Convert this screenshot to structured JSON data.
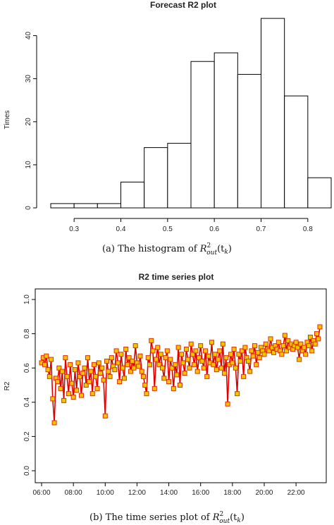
{
  "captions": {
    "a_prefix": "(a)  The histogram of ",
    "a_math": "R",
    "a_sup": "2",
    "a_sub": "out",
    "a_arg": "(t",
    "a_argsub": "k",
    "a_close": ")",
    "b_prefix": "(b)  The time series plot of ",
    "b_math": "R",
    "b_sup": "2",
    "b_sub": "out",
    "b_arg": "(t",
    "b_argsub": "k",
    "b_close": ")"
  },
  "chart_data": [
    {
      "type": "bar",
      "title": "Forecast R2 plot",
      "xlabel": "",
      "ylabel": "Times",
      "bin_edges": [
        0.25,
        0.3,
        0.35,
        0.4,
        0.45,
        0.5,
        0.55,
        0.6,
        0.65,
        0.7,
        0.75,
        0.8,
        0.85
      ],
      "values": [
        1,
        1,
        1,
        6,
        14,
        15,
        34,
        36,
        31,
        44,
        26,
        7
      ],
      "x_ticks": [
        "0.3",
        "0.4",
        "0.5",
        "0.6",
        "0.7",
        "0.8"
      ],
      "x_tick_values": [
        0.3,
        0.4,
        0.5,
        0.6,
        0.7,
        0.8
      ],
      "y_ticks": [
        "0",
        "10",
        "20",
        "30",
        "40"
      ],
      "y_tick_values": [
        0,
        10,
        20,
        30,
        40
      ],
      "xlim": [
        0.25,
        0.85
      ],
      "ylim": [
        0,
        45
      ],
      "bar_fill": "#ffffff",
      "bar_stroke": "#000000"
    },
    {
      "type": "line",
      "title": "R2 time series plot",
      "xlabel": "",
      "ylabel": "R2",
      "x_unit": "hour of day",
      "x_ticks": [
        "06:00",
        "08:00",
        "10:00",
        "12:00",
        "14:00",
        "16:00",
        "18:00",
        "20:00",
        "22:00"
      ],
      "x_tick_values": [
        6,
        8,
        10,
        12,
        14,
        16,
        18,
        20,
        22
      ],
      "y_ticks": [
        "0.0",
        "0.2",
        "0.4",
        "0.6",
        "0.8",
        "1.0"
      ],
      "y_tick_values": [
        0.0,
        0.2,
        0.4,
        0.6,
        0.8,
        1.0
      ],
      "xlim": [
        5.6,
        23.9
      ],
      "ylim": [
        0.0,
        1.0
      ],
      "line_color": "#e00000",
      "marker_fill": "#f5c400",
      "marker_stroke": "#e03000",
      "series": [
        {
          "x": [
            6.0,
            6.1,
            6.2,
            6.3,
            6.4,
            6.5,
            6.6,
            6.7,
            6.8,
            6.9,
            7.0,
            7.1,
            7.2,
            7.3,
            7.4,
            7.5,
            7.6,
            7.7,
            7.8,
            7.9,
            8.0,
            8.1,
            8.2,
            8.3,
            8.4,
            8.5,
            8.6,
            8.7,
            8.8,
            8.9,
            9.0,
            9.1,
            9.2,
            9.3,
            9.4,
            9.5,
            9.6,
            9.7,
            9.8,
            9.9,
            10.0,
            10.1,
            10.2,
            10.3,
            10.4,
            10.5,
            10.6,
            10.7,
            10.8,
            10.9,
            11.0,
            11.1,
            11.2,
            11.3,
            11.4,
            11.5,
            11.6,
            11.7,
            11.8,
            11.9,
            12.0,
            12.1,
            12.2,
            12.3,
            12.4,
            12.5,
            12.6,
            12.7,
            12.8,
            12.9,
            13.0,
            13.1,
            13.2,
            13.3,
            13.4,
            13.5,
            13.6,
            13.7,
            13.8,
            13.9,
            14.0,
            14.1,
            14.2,
            14.3,
            14.4,
            14.5,
            14.6,
            14.7,
            14.8,
            14.9,
            15.0,
            15.1,
            15.2,
            15.3,
            15.4,
            15.5,
            15.6,
            15.7,
            15.8,
            15.9,
            16.0,
            16.1,
            16.2,
            16.3,
            16.4,
            16.5,
            16.6,
            16.7,
            16.8,
            16.9,
            17.0,
            17.1,
            17.2,
            17.3,
            17.4,
            17.5,
            17.6,
            17.7,
            17.8,
            17.9,
            18.0,
            18.1,
            18.2,
            18.3,
            18.4,
            18.5,
            18.6,
            18.7,
            18.8,
            18.9,
            19.0,
            19.1,
            19.2,
            19.3,
            19.4,
            19.5,
            19.6,
            19.7,
            19.8,
            19.9,
            20.0,
            20.1,
            20.2,
            20.3,
            20.4,
            20.5,
            20.6,
            20.7,
            20.8,
            20.9,
            21.0,
            21.1,
            21.2,
            21.3,
            21.4,
            21.5,
            21.6,
            21.7,
            21.8,
            21.9,
            22.0,
            22.1,
            22.2,
            22.3,
            22.4,
            22.5,
            22.6,
            22.7,
            22.8,
            22.9,
            23.0,
            23.1,
            23.2,
            23.3,
            23.4,
            23.5
          ],
          "y": [
            0.63,
            0.66,
            0.62,
            0.67,
            0.59,
            0.55,
            0.65,
            0.42,
            0.28,
            0.54,
            0.52,
            0.6,
            0.48,
            0.58,
            0.41,
            0.66,
            0.55,
            0.45,
            0.62,
            0.51,
            0.43,
            0.59,
            0.47,
            0.63,
            0.55,
            0.44,
            0.57,
            0.6,
            0.5,
            0.66,
            0.52,
            0.58,
            0.45,
            0.62,
            0.55,
            0.48,
            0.63,
            0.57,
            0.6,
            0.53,
            0.32,
            0.64,
            0.58,
            0.55,
            0.66,
            0.61,
            0.59,
            0.7,
            0.63,
            0.52,
            0.68,
            0.6,
            0.54,
            0.71,
            0.62,
            0.66,
            0.58,
            0.64,
            0.6,
            0.73,
            0.63,
            0.61,
            0.67,
            0.58,
            0.55,
            0.5,
            0.45,
            0.66,
            0.62,
            0.76,
            0.7,
            0.48,
            0.65,
            0.72,
            0.62,
            0.68,
            0.6,
            0.54,
            0.66,
            0.7,
            0.52,
            0.65,
            0.6,
            0.48,
            0.62,
            0.56,
            0.72,
            0.5,
            0.68,
            0.63,
            0.57,
            0.71,
            0.65,
            0.6,
            0.74,
            0.68,
            0.62,
            0.7,
            0.58,
            0.66,
            0.73,
            0.64,
            0.6,
            0.7,
            0.55,
            0.67,
            0.63,
            0.75,
            0.62,
            0.68,
            0.59,
            0.65,
            0.7,
            0.6,
            0.74,
            0.57,
            0.66,
            0.39,
            0.62,
            0.68,
            0.63,
            0.71,
            0.6,
            0.45,
            0.68,
            0.64,
            0.7,
            0.55,
            0.72,
            0.66,
            0.64,
            0.58,
            0.7,
            0.67,
            0.73,
            0.62,
            0.69,
            0.66,
            0.72,
            0.7,
            0.68,
            0.74,
            0.71,
            0.7,
            0.77,
            0.72,
            0.69,
            0.73,
            0.71,
            0.75,
            0.7,
            0.68,
            0.73,
            0.79,
            0.7,
            0.76,
            0.72,
            0.74,
            0.71,
            0.73,
            0.75,
            0.72,
            0.65,
            0.74,
            0.7,
            0.72,
            0.68,
            0.75,
            0.73,
            0.78,
            0.7,
            0.76,
            0.74,
            0.8,
            0.77,
            0.84
          ]
        }
      ]
    }
  ]
}
